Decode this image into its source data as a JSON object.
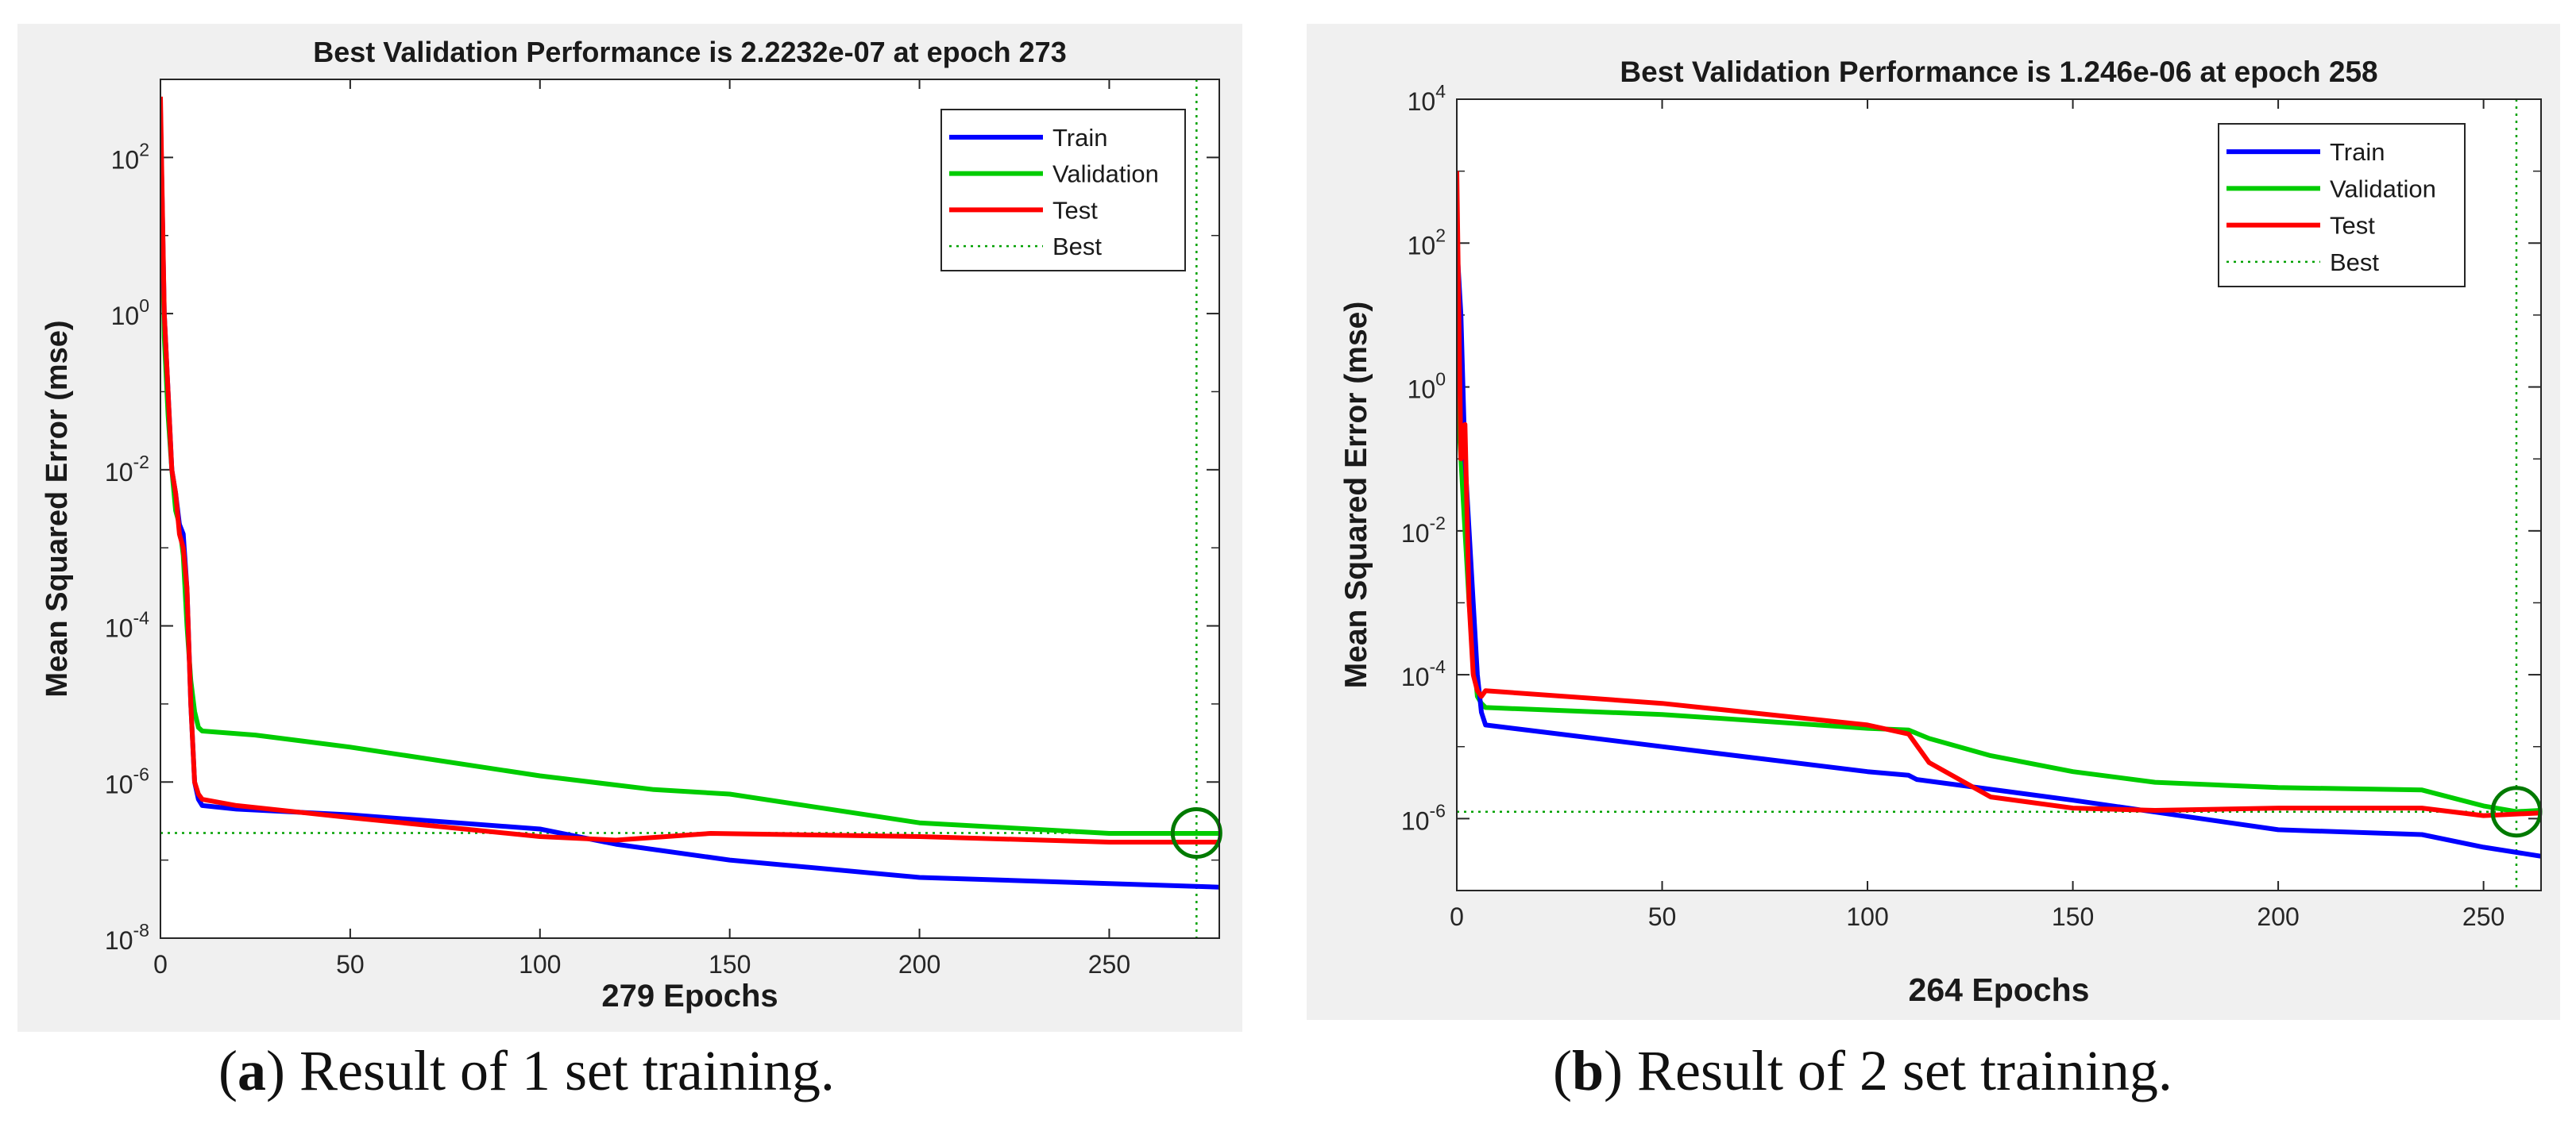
{
  "colors": {
    "train": "#0000ff",
    "validation": "#00cc00",
    "test": "#ff0000",
    "best": "#00a000",
    "best_circle": "#007a00",
    "panel_bg": "#f0f0f0",
    "axes_bg": "#ffffff"
  },
  "captions": [
    {
      "letter": "a",
      "text": " Result of 1 set training."
    },
    {
      "letter": "b",
      "text": " Result of 2 set training."
    }
  ],
  "chart_data": [
    {
      "type": "line",
      "yscale": "log",
      "title": "Best Validation Performance is 2.2232e-07 at epoch 273",
      "xlabel": "279 Epochs",
      "ylabel": "Mean Squared Error  (mse)",
      "xlim": [
        0,
        279
      ],
      "ylim_exp": [
        -8,
        3
      ],
      "xticks": [
        0,
        50,
        100,
        150,
        200,
        250
      ],
      "yticks_exp": [
        -8,
        -6,
        -4,
        -2,
        0,
        2
      ],
      "best": {
        "epoch": 273,
        "value": 2.2232e-07
      },
      "legend": [
        "Train",
        "Validation",
        "Test",
        "Best"
      ],
      "legend_position": "top-right",
      "series": [
        {
          "name": "Train",
          "x": [
            0,
            1,
            2,
            3,
            4,
            5,
            6,
            7,
            8,
            9,
            10,
            11,
            20,
            50,
            100,
            120,
            150,
            200,
            250,
            279
          ],
          "y": [
            400,
            1,
            0.1,
            0.01,
            0.005,
            0.002,
            0.0015,
            0.0003,
            1e-05,
            1e-06,
            6e-07,
            5e-07,
            4.5e-07,
            3.8e-07,
            2.5e-07,
            1.6e-07,
            1e-07,
            6e-08,
            5e-08,
            4.5e-08
          ]
        },
        {
          "name": "Validation",
          "x": [
            0,
            1,
            2,
            3,
            4,
            5,
            6,
            7,
            8,
            9,
            10,
            11,
            25,
            50,
            100,
            130,
            150,
            200,
            250,
            279
          ],
          "y": [
            300,
            0.5,
            0.05,
            0.01,
            0.003,
            0.002,
            0.0008,
            0.0001,
            2e-05,
            8e-06,
            5e-06,
            4.5e-06,
            4e-06,
            2.8e-06,
            1.2e-06,
            8e-07,
            7e-07,
            3e-07,
            2.2e-07,
            2.2e-07
          ]
        },
        {
          "name": "Test",
          "x": [
            0,
            1,
            2,
            3,
            4,
            5,
            6,
            7,
            8,
            9,
            10,
            11,
            20,
            50,
            100,
            120,
            145,
            200,
            250,
            279
          ],
          "y": [
            600,
            1,
            0.1,
            0.01,
            0.005,
            0.0015,
            0.001,
            0.0003,
            1e-05,
            1e-06,
            7e-07,
            6e-07,
            5e-07,
            3.5e-07,
            2e-07,
            1.8e-07,
            2.2e-07,
            2e-07,
            1.7e-07,
            1.7e-07
          ]
        }
      ]
    },
    {
      "type": "line",
      "yscale": "log",
      "title": "Best Validation Performance is 1.246e-06 at epoch 258",
      "xlabel": "264 Epochs",
      "ylabel": "Mean Squared Error  (mse)",
      "xlim": [
        0,
        264
      ],
      "ylim_exp": [
        -7,
        4
      ],
      "xticks": [
        0,
        50,
        100,
        150,
        200,
        250
      ],
      "yticks_exp": [
        -6,
        -4,
        -2,
        0,
        2,
        4
      ],
      "best": {
        "epoch": 258,
        "value": 1.246e-06
      },
      "legend": [
        "Train",
        "Validation",
        "Test",
        "Best"
      ],
      "legend_position": "top-right",
      "series": [
        {
          "name": "Train",
          "x": [
            0,
            1,
            2,
            3,
            4,
            5,
            6,
            7,
            50,
            100,
            110,
            112,
            150,
            200,
            235,
            250,
            264
          ],
          "y": [
            100,
            10,
            0.1,
            0.01,
            0.001,
            0.0001,
            3e-05,
            2e-05,
            1e-05,
            4.5e-06,
            4e-06,
            3.5e-06,
            1.8e-06,
            7e-07,
            6e-07,
            4e-07,
            3e-07
          ]
        },
        {
          "name": "Validation",
          "x": [
            0,
            1,
            2,
            3,
            4,
            5,
            6,
            7,
            50,
            100,
            110,
            115,
            130,
            150,
            170,
            200,
            235,
            250,
            258,
            264
          ],
          "y": [
            1,
            0.1,
            0.01,
            0.001,
            0.0002,
            5e-05,
            4e-05,
            3.5e-05,
            2.8e-05,
            1.8e-05,
            1.7e-05,
            1.3e-05,
            7.5e-06,
            4.5e-06,
            3.2e-06,
            2.7e-06,
            2.5e-06,
            1.5e-06,
            1.25e-06,
            1.3e-06
          ]
        },
        {
          "name": "Test",
          "x": [
            0,
            1,
            2,
            3,
            4,
            5,
            6,
            7,
            50,
            100,
            110,
            115,
            130,
            150,
            170,
            200,
            235,
            250,
            264
          ],
          "y": [
            1000,
            0.1,
            0.3,
            0.001,
            0.0001,
            6e-05,
            5e-05,
            6e-05,
            4e-05,
            2e-05,
            1.5e-05,
            6e-06,
            2e-06,
            1.4e-06,
            1.3e-06,
            1.4e-06,
            1.4e-06,
            1.1e-06,
            1.2e-06
          ]
        }
      ]
    }
  ]
}
